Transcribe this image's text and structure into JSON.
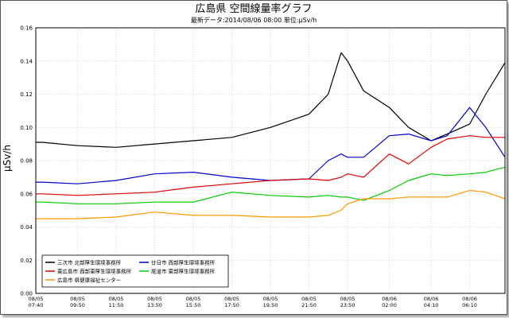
{
  "chart_data": {
    "type": "line",
    "title": "広島県 空間線量率グラフ",
    "subtitle": "最新データ:2014/08/06 08:00 単位:μSv/h",
    "xlabel": "",
    "ylabel": "μSv/h",
    "ylim": [
      0,
      0.16
    ],
    "y_ticks": [
      "0.00",
      "0.02",
      "0.04",
      "0.06",
      "0.08",
      "0.10",
      "0.12",
      "0.14",
      "0.16"
    ],
    "grid": true,
    "legend_position": "bottom-left",
    "x_ticks": [
      {
        "date": "08/05",
        "time": "07:40"
      },
      {
        "date": "08/05",
        "time": "09:50"
      },
      {
        "date": "08/05",
        "time": "11:50"
      },
      {
        "date": "08/05",
        "time": "13:50"
      },
      {
        "date": "08/05",
        "time": "15:50"
      },
      {
        "date": "08/05",
        "time": "17:50"
      },
      {
        "date": "08/05",
        "time": "19:50"
      },
      {
        "date": "08/05",
        "time": "21:50"
      },
      {
        "date": "08/05",
        "time": "23:50"
      },
      {
        "date": "08/06",
        "time": "02:00"
      },
      {
        "date": "08/06",
        "time": "04:10"
      },
      {
        "date": "08/06",
        "time": "06:10"
      }
    ],
    "x_points": [
      "08/05 07:40",
      "08/05 08:00",
      "08/05 09:50",
      "08/05 11:50",
      "08/05 13:50",
      "08/05 15:50",
      "08/05 17:50",
      "08/05 19:50",
      "08/05 21:50",
      "08/05 22:50",
      "08/05 23:30",
      "08/05 23:50",
      "08/06 00:40",
      "08/06 02:00",
      "08/06 03:00",
      "08/06 04:10",
      "08/06 05:00",
      "08/06 06:10",
      "08/06 07:00",
      "08/06 08:00"
    ],
    "series": [
      {
        "name": "三次市 北部厚生環境事務所",
        "color": "#000000",
        "values": [
          0.091,
          0.091,
          0.089,
          0.088,
          0.09,
          0.092,
          0.094,
          0.1,
          0.108,
          0.12,
          0.145,
          0.14,
          0.122,
          0.112,
          0.1,
          0.092,
          0.096,
          0.102,
          0.12,
          0.139
        ]
      },
      {
        "name": "廿日市 西部厚生環境事務所",
        "color": "#0000cc",
        "values": [
          0.067,
          0.067,
          0.066,
          0.068,
          0.072,
          0.073,
          0.07,
          0.068,
          0.069,
          0.08,
          0.084,
          0.082,
          0.082,
          0.095,
          0.096,
          0.092,
          0.095,
          0.112,
          0.1,
          0.082
        ]
      },
      {
        "name": "東広島市 西部東厚生環境事務所",
        "color": "#dd0000",
        "values": [
          0.06,
          0.06,
          0.059,
          0.06,
          0.061,
          0.064,
          0.066,
          0.068,
          0.069,
          0.068,
          0.07,
          0.072,
          0.07,
          0.084,
          0.078,
          0.088,
          0.093,
          0.095,
          0.094,
          0.094
        ]
      },
      {
        "name": "尾道市 東部厚生環境事務所",
        "color": "#00cc00",
        "values": [
          0.055,
          0.055,
          0.054,
          0.054,
          0.055,
          0.055,
          0.061,
          0.059,
          0.058,
          0.059,
          0.058,
          0.058,
          0.056,
          0.062,
          0.068,
          0.072,
          0.071,
          0.072,
          0.073,
          0.076
        ]
      },
      {
        "name": "広島市 県健康福祉センター",
        "color": "#ff9900",
        "values": [
          0.045,
          0.045,
          0.045,
          0.046,
          0.049,
          0.047,
          0.047,
          0.046,
          0.046,
          0.047,
          0.05,
          0.054,
          0.057,
          0.057,
          0.058,
          0.058,
          0.058,
          0.062,
          0.061,
          0.057
        ]
      }
    ]
  }
}
